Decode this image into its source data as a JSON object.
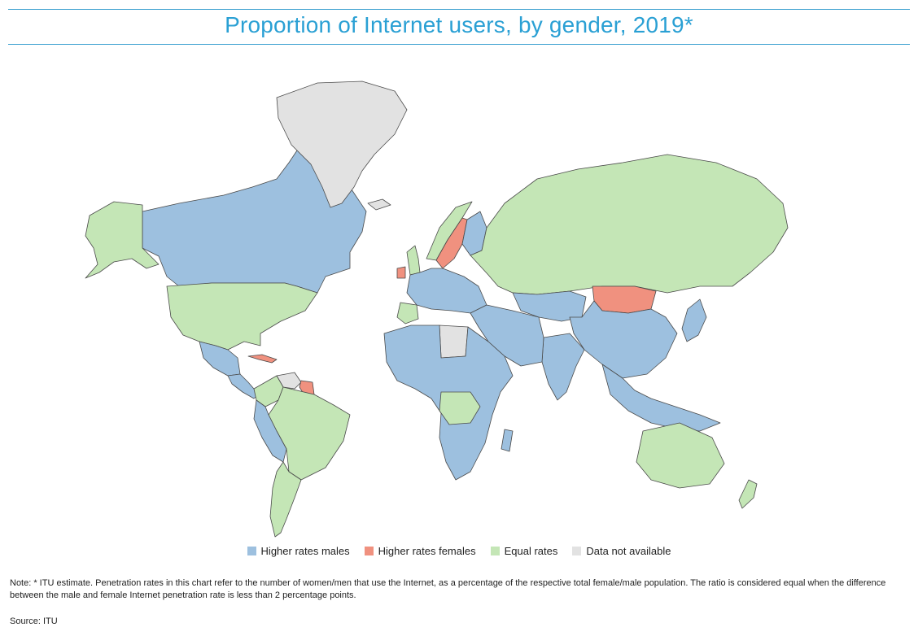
{
  "title": "Proportion of Internet users, by gender, 2019*",
  "colors": {
    "higher_males": "#9dc0df",
    "higher_females": "#f0917f",
    "equal": "#c4e6b6",
    "not_available": "#e2e2e2",
    "border": "#4a4a4a",
    "accent": "#2aa0d4"
  },
  "legend": [
    {
      "label": "Higher rates males",
      "key": "higher_males"
    },
    {
      "label": "Higher rates females",
      "key": "higher_females"
    },
    {
      "label": "Equal rates",
      "key": "equal"
    },
    {
      "label": "Data not available",
      "key": "not_available"
    }
  ],
  "regions": [
    {
      "name": "Canada",
      "category": "higher_males"
    },
    {
      "name": "Alaska (USA)",
      "category": "equal"
    },
    {
      "name": "United States",
      "category": "equal"
    },
    {
      "name": "Greenland",
      "category": "not_available"
    },
    {
      "name": "Mexico",
      "category": "higher_males"
    },
    {
      "name": "Central America",
      "category": "higher_males"
    },
    {
      "name": "Cuba",
      "category": "higher_females"
    },
    {
      "name": "Venezuela",
      "category": "not_available"
    },
    {
      "name": "Guyana / Suriname",
      "category": "higher_females"
    },
    {
      "name": "Colombia",
      "category": "equal"
    },
    {
      "name": "Brazil",
      "category": "equal"
    },
    {
      "name": "Peru / Bolivia",
      "category": "higher_males"
    },
    {
      "name": "Chile / Argentina",
      "category": "equal"
    },
    {
      "name": "Iceland",
      "category": "not_available"
    },
    {
      "name": "United Kingdom",
      "category": "equal"
    },
    {
      "name": "Ireland",
      "category": "higher_females"
    },
    {
      "name": "Norway",
      "category": "equal"
    },
    {
      "name": "Sweden",
      "category": "higher_females"
    },
    {
      "name": "Finland",
      "category": "higher_males"
    },
    {
      "name": "Western Europe",
      "category": "higher_males"
    },
    {
      "name": "Iberia",
      "category": "equal"
    },
    {
      "name": "Russia",
      "category": "equal"
    },
    {
      "name": "Kazakhstan / Central Asia",
      "category": "higher_males"
    },
    {
      "name": "Mongolia",
      "category": "higher_females"
    },
    {
      "name": "China",
      "category": "higher_males"
    },
    {
      "name": "India",
      "category": "higher_males"
    },
    {
      "name": "Middle East",
      "category": "higher_males"
    },
    {
      "name": "Libya",
      "category": "not_available"
    },
    {
      "name": "Africa",
      "category": "higher_males"
    },
    {
      "name": "Central Africa",
      "category": "equal"
    },
    {
      "name": "Southeast Asia",
      "category": "higher_males"
    },
    {
      "name": "Japan",
      "category": "higher_males"
    },
    {
      "name": "Australia",
      "category": "equal"
    },
    {
      "name": "New Zealand",
      "category": "equal"
    },
    {
      "name": "Madagascar",
      "category": "higher_males"
    }
  ],
  "note": "Note: * ITU estimate. Penetration rates in this chart refer to the number of women/men that use the Internet, as a percentage of the respective total female/male population. The ratio is considered equal when the difference between the male and female Internet penetration rate is less than 2 percentage points.",
  "source": "Source: ITU"
}
